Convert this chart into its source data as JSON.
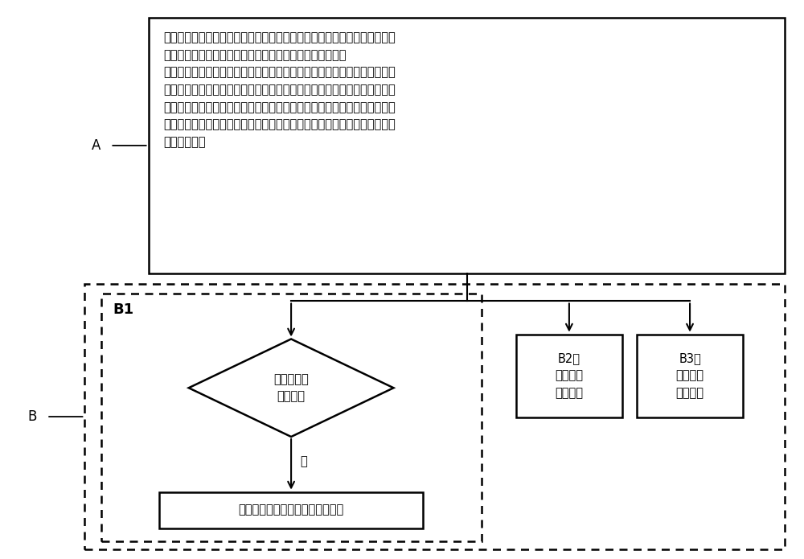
{
  "bg_color": "#ffffff",
  "fig_width": 10.0,
  "fig_height": 6.95,
  "dpi": 100,
  "label_A": "A",
  "label_B": "B",
  "box_A_text": "获取所述车辆的测算对象的联合运算值，根据所述获取的联合运算值和所述\n测算对象的参考值判断所述车辆的动力传递状况是否异常；\n所述测算对象是所述车辆的车辆质量、源动力参数、系统运行参数中任意一\n种参数；所述联合运算值是以车辆运动平衡为原理计算所得；当所述动力装\n置为电机时所述源动力参数包括电机驱动参数、后端的电气动力参数中任意\n一种或两种参数；当所述动力装置为混合动力装置时所述源动力参数包括混\n合动力参数；",
  "diamond_text": "所述判断结\n果包括是",
  "rect_bottom_text": "启动设定的动力传递异常处理机制",
  "b2_text": "B2、\n输出所述\n判断结果",
  "b3_text": "B3、\n保存所述\n判断结果",
  "b1_label": "B1",
  "yes_label": "是",
  "line_color": "#000000",
  "box_fill": "#ffffff",
  "text_color": "#000000",
  "font_size_main": 10.5,
  "font_size_label": 12,
  "font_size_b1": 13
}
